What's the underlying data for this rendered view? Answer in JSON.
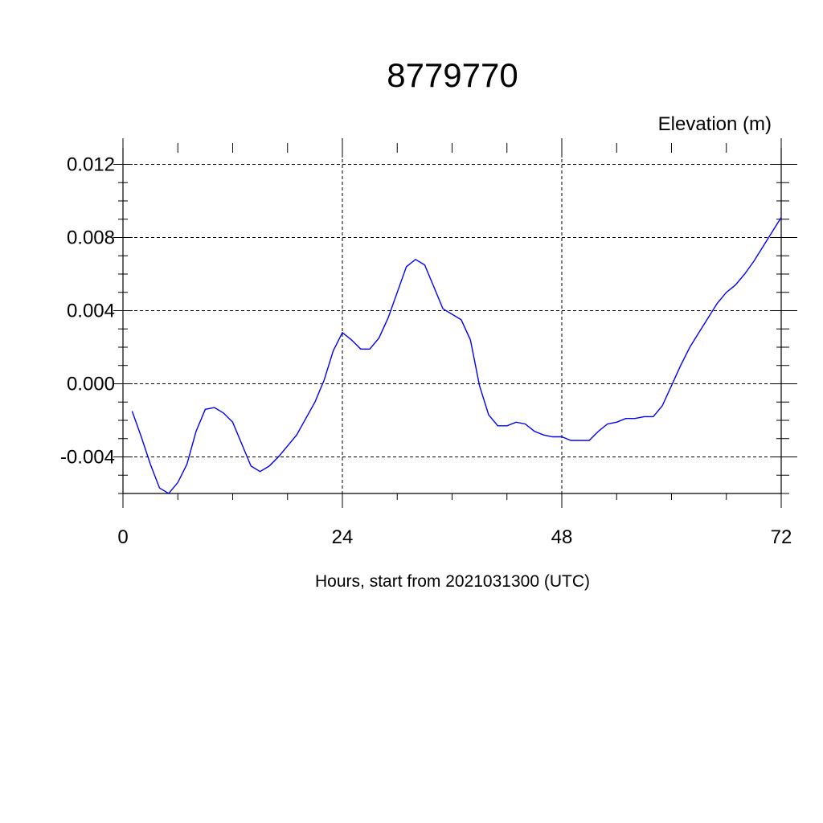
{
  "chart_data": {
    "type": "line",
    "title": "8779770",
    "subtitle": "Elevation (m)",
    "xlabel": "Hours, start from 2021031300 (UTC)",
    "ylabel": "",
    "xlim": [
      0,
      72
    ],
    "ylim": [
      -0.006,
      0.013
    ],
    "xticks": [
      0,
      24,
      48,
      72
    ],
    "xtick_labels": [
      "0",
      "24",
      "48",
      "72"
    ],
    "yticks": [
      -0.004,
      0.0,
      0.004,
      0.008,
      0.012
    ],
    "ytick_labels": [
      "-0.004",
      "0.000",
      "0.004",
      "0.008",
      "0.012"
    ],
    "grid": true,
    "line_color": "#0000ff",
    "series": [
      {
        "x": [
          1,
          2,
          3,
          4,
          5,
          6,
          7,
          8,
          9,
          10,
          11,
          12,
          13,
          14,
          15,
          16,
          17,
          18,
          19,
          20,
          21,
          22,
          23,
          24,
          25,
          26,
          27,
          28,
          29,
          30,
          31,
          32,
          33,
          34,
          35,
          36,
          37,
          38,
          39,
          40,
          41,
          42,
          43,
          44,
          45,
          46,
          47,
          48,
          49,
          50,
          51,
          52,
          53,
          54,
          55,
          56,
          57,
          58,
          59,
          60,
          61,
          62,
          63,
          64,
          65,
          66,
          67,
          68,
          69,
          70,
          71,
          72
        ],
        "values": [
          -0.0015,
          -0.0029,
          -0.0044,
          -0.0057,
          -0.006,
          -0.0054,
          -0.0044,
          -0.0026,
          -0.0014,
          -0.0013,
          -0.0016,
          -0.0021,
          -0.0033,
          -0.0045,
          -0.0048,
          -0.0045,
          -0.004,
          -0.0034,
          -0.0028,
          -0.0019,
          -0.001,
          0.0002,
          0.0018,
          0.0028,
          0.0024,
          0.0019,
          0.0019,
          0.0025,
          0.0036,
          0.005,
          0.0064,
          0.0068,
          0.0065,
          0.0053,
          0.0041,
          0.0038,
          0.0035,
          0.0024,
          -0.0001,
          -0.0017,
          -0.0023,
          -0.0023,
          -0.0021,
          -0.0022,
          -0.0026,
          -0.0028,
          -0.0029,
          -0.0029,
          -0.0031,
          -0.0031,
          -0.0031,
          -0.0026,
          -0.0022,
          -0.0021,
          -0.0019,
          -0.0019,
          -0.0018,
          -0.0018,
          -0.0012,
          -0.0001,
          0.001,
          0.002,
          0.0028,
          0.0036,
          0.0044,
          0.005,
          0.0054,
          0.006,
          0.0067,
          0.0075,
          0.0083,
          0.0091
        ]
      }
    ]
  }
}
